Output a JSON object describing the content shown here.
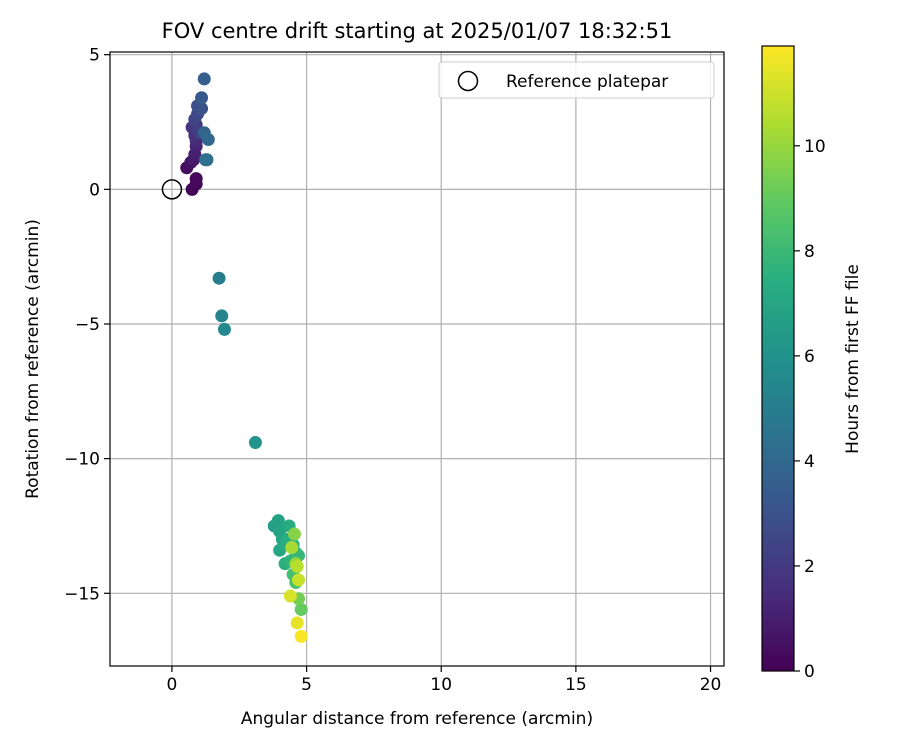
{
  "chart_data": {
    "type": "scatter",
    "title": "FOV centre drift starting at 2025/01/07 18:32:51",
    "xlabel": "Angular distance from reference (arcmin)",
    "ylabel": "Rotation from reference (arcmin)",
    "xlim": [
      -2.3,
      20.5
    ],
    "ylim": [
      -17.7,
      5.1
    ],
    "x_ticks": [
      0,
      5,
      10,
      15,
      20
    ],
    "y_ticks": [
      5,
      0,
      -5,
      -10,
      -15
    ],
    "x_tick_labels": [
      "0",
      "5",
      "10",
      "15",
      "20"
    ],
    "y_tick_labels": [
      "5",
      "0",
      "−5",
      "−10",
      "−15"
    ],
    "grid": true,
    "legend": {
      "position": "top-right",
      "entries": [
        "Reference platepar"
      ]
    },
    "colorbar": {
      "label": "Hours from first FF file",
      "colormap": "viridis",
      "range": [
        0,
        11.9
      ],
      "ticks": [
        0,
        2,
        4,
        6,
        8,
        10
      ],
      "tick_labels": [
        "0",
        "2",
        "4",
        "6",
        "8",
        "10"
      ]
    },
    "reference_point": {
      "name": "Reference platepar",
      "x": 0,
      "y": 0
    },
    "points": [
      {
        "x": 0.75,
        "y": 0.0,
        "hours": 0.1
      },
      {
        "x": 0.9,
        "y": 0.2,
        "hours": 0.2
      },
      {
        "x": 0.9,
        "y": 0.4,
        "hours": 0.3
      },
      {
        "x": 0.55,
        "y": 0.8,
        "hours": 0.4
      },
      {
        "x": 0.7,
        "y": 1.0,
        "hours": 0.6
      },
      {
        "x": 0.8,
        "y": 1.1,
        "hours": 0.8
      },
      {
        "x": 0.85,
        "y": 1.3,
        "hours": 1.0
      },
      {
        "x": 0.9,
        "y": 1.6,
        "hours": 1.2
      },
      {
        "x": 0.9,
        "y": 1.8,
        "hours": 1.4
      },
      {
        "x": 0.85,
        "y": 2.0,
        "hours": 1.6
      },
      {
        "x": 0.75,
        "y": 2.3,
        "hours": 1.8
      },
      {
        "x": 0.9,
        "y": 2.4,
        "hours": 2.0
      },
      {
        "x": 1.0,
        "y": 2.1,
        "hours": 2.2
      },
      {
        "x": 0.85,
        "y": 2.6,
        "hours": 2.4
      },
      {
        "x": 0.95,
        "y": 2.8,
        "hours": 2.6
      },
      {
        "x": 0.95,
        "y": 3.1,
        "hours": 2.8
      },
      {
        "x": 1.1,
        "y": 3.0,
        "hours": 3.0
      },
      {
        "x": 1.1,
        "y": 3.4,
        "hours": 3.3
      },
      {
        "x": 1.2,
        "y": 4.1,
        "hours": 3.6
      },
      {
        "x": 1.2,
        "y": 2.1,
        "hours": 3.8
      },
      {
        "x": 1.35,
        "y": 1.85,
        "hours": 4.0
      },
      {
        "x": 1.3,
        "y": 1.1,
        "hours": 4.2
      },
      {
        "x": 1.25,
        "y": 1.1,
        "hours": 4.4
      },
      {
        "x": 1.75,
        "y": -3.3,
        "hours": 5.0
      },
      {
        "x": 1.85,
        "y": -4.7,
        "hours": 5.3
      },
      {
        "x": 1.95,
        "y": -5.2,
        "hours": 5.5
      },
      {
        "x": 3.1,
        "y": -9.4,
        "hours": 6.1
      },
      {
        "x": 3.8,
        "y": -12.5,
        "hours": 6.6
      },
      {
        "x": 3.95,
        "y": -12.3,
        "hours": 6.8
      },
      {
        "x": 4.0,
        "y": -12.7,
        "hours": 6.9
      },
      {
        "x": 4.1,
        "y": -13.0,
        "hours": 7.0
      },
      {
        "x": 4.0,
        "y": -13.4,
        "hours": 7.1
      },
      {
        "x": 4.2,
        "y": -13.2,
        "hours": 7.2
      },
      {
        "x": 4.35,
        "y": -12.5,
        "hours": 7.3
      },
      {
        "x": 4.3,
        "y": -13.0,
        "hours": 7.4
      },
      {
        "x": 4.2,
        "y": -13.9,
        "hours": 7.5
      },
      {
        "x": 4.5,
        "y": -13.2,
        "hours": 7.6
      },
      {
        "x": 4.4,
        "y": -13.8,
        "hours": 7.7
      },
      {
        "x": 4.6,
        "y": -13.5,
        "hours": 7.8
      },
      {
        "x": 4.7,
        "y": -13.6,
        "hours": 7.9
      },
      {
        "x": 4.5,
        "y": -14.3,
        "hours": 8.2
      },
      {
        "x": 4.6,
        "y": -14.6,
        "hours": 8.5
      },
      {
        "x": 4.8,
        "y": -15.6,
        "hours": 9.0
      },
      {
        "x": 4.7,
        "y": -15.2,
        "hours": 9.3
      },
      {
        "x": 4.55,
        "y": -12.8,
        "hours": 9.7
      },
      {
        "x": 4.6,
        "y": -13.9,
        "hours": 10.0
      },
      {
        "x": 4.45,
        "y": -13.3,
        "hours": 10.3
      },
      {
        "x": 4.65,
        "y": -14.0,
        "hours": 10.6
      },
      {
        "x": 4.7,
        "y": -14.5,
        "hours": 10.9
      },
      {
        "x": 4.4,
        "y": -15.1,
        "hours": 11.2
      },
      {
        "x": 4.65,
        "y": -16.1,
        "hours": 11.5
      },
      {
        "x": 4.8,
        "y": -16.6,
        "hours": 11.8
      }
    ]
  }
}
